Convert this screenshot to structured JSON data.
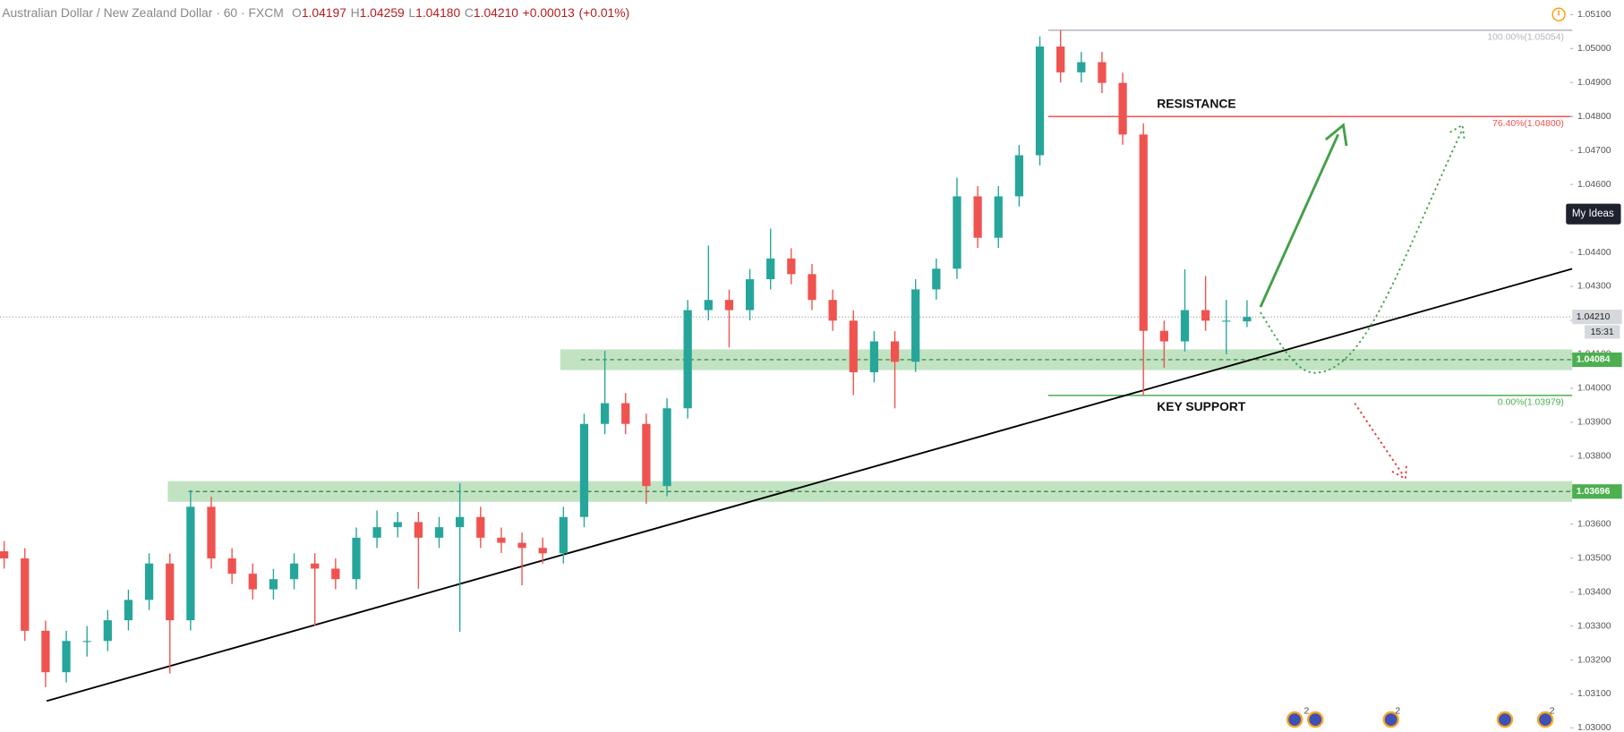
{
  "chart_data": {
    "type": "candlestick",
    "title": "Australian Dollar / New Zealand Dollar · 60 · FXCM",
    "header": {
      "labels": [
        "O",
        "H",
        "L",
        "C"
      ],
      "values": [
        {
          "value": 1.04197,
          "label": "1.04197"
        },
        {
          "value": 1.04259,
          "label": "1.04259"
        },
        {
          "value": 1.0418,
          "label": "1.04180"
        },
        {
          "value": 1.0421,
          "label": "1.04210"
        }
      ],
      "change": {
        "value": 0.00013,
        "label": "+0.00013"
      },
      "change_pct": {
        "value": 0.01,
        "label": "(+0.01%)"
      }
    },
    "open": [
      1.0352,
      1.03499,
      1.03286,
      1.03164,
      1.03256,
      1.03256,
      1.03317,
      1.03377,
      1.03484,
      1.03317,
      1.03651,
      1.03499,
      1.03454,
      1.03408,
      1.03438,
      1.03484,
      1.03469,
      1.03438,
      1.0356,
      1.03591,
      1.03606,
      1.0356,
      1.03591,
      1.03621,
      1.0356,
      1.03545,
      1.0353,
      1.03514,
      1.03621,
      1.03895,
      1.03956,
      1.03895,
      1.03712,
      1.03941,
      1.0423,
      1.0426,
      1.0423,
      1.04321,
      1.04382,
      1.04336,
      1.0426,
      1.04199,
      1.04047,
      1.04138,
      1.04078,
      1.04291,
      1.04352,
      1.04565,
      1.04443,
      1.04565,
      1.04686,
      1.05006,
      1.0493,
      1.0496,
      1.04899,
      1.04747,
      1.04169,
      1.04138,
      1.0423,
      1.04199,
      1.04197
    ],
    "high": [
      1.0355,
      1.03529,
      1.03316,
      1.03286,
      1.033,
      1.03347,
      1.03407,
      1.03514,
      1.03514,
      1.037,
      1.03681,
      1.03529,
      1.03484,
      1.03468,
      1.03514,
      1.03514,
      1.03499,
      1.0359,
      1.0364,
      1.03636,
      1.03636,
      1.03621,
      1.0372,
      1.03651,
      1.0359,
      1.03575,
      1.0356,
      1.03651,
      1.03925,
      1.0411,
      1.03986,
      1.03925,
      1.03971,
      1.0426,
      1.0442,
      1.0429,
      1.04351,
      1.0447,
      1.04412,
      1.04366,
      1.0429,
      1.04229,
      1.04168,
      1.04168,
      1.04321,
      1.04382,
      1.0462,
      1.04595,
      1.04595,
      1.04716,
      1.05036,
      1.05054,
      1.0499,
      1.0499,
      1.04929,
      1.0478,
      1.04199,
      1.0435,
      1.0433,
      1.0426,
      1.04259
    ],
    "low": [
      1.03469,
      1.03256,
      1.0312,
      1.03134,
      1.0321,
      1.03226,
      1.03287,
      1.03347,
      1.0316,
      1.03287,
      1.03469,
      1.03424,
      1.03378,
      1.03378,
      1.03408,
      1.033,
      1.03408,
      1.03408,
      1.0353,
      1.03561,
      1.0341,
      1.0353,
      1.03283,
      1.0353,
      1.03515,
      1.0342,
      1.03484,
      1.03484,
      1.03591,
      1.03865,
      1.03865,
      1.0366,
      1.03682,
      1.03911,
      1.042,
      1.0412,
      1.042,
      1.04291,
      1.04306,
      1.0423,
      1.04169,
      1.0398,
      1.04017,
      1.03941,
      1.04048,
      1.04261,
      1.04322,
      1.04413,
      1.04413,
      1.04535,
      1.04656,
      1.049,
      1.049,
      1.04869,
      1.04717,
      1.03979,
      1.0406,
      1.04108,
      1.04169,
      1.041,
      1.0418
    ],
    "close": [
      1.03499,
      1.03286,
      1.03164,
      1.03256,
      1.03256,
      1.03317,
      1.03377,
      1.03484,
      1.03317,
      1.03651,
      1.03499,
      1.03454,
      1.03408,
      1.03438,
      1.03484,
      1.03469,
      1.03438,
      1.0356,
      1.03591,
      1.03606,
      1.0356,
      1.03591,
      1.03621,
      1.0356,
      1.03545,
      1.0353,
      1.03514,
      1.03621,
      1.03895,
      1.03956,
      1.03895,
      1.03712,
      1.03941,
      1.0423,
      1.0426,
      1.0423,
      1.04321,
      1.04382,
      1.04336,
      1.0426,
      1.04199,
      1.04047,
      1.04138,
      1.04078,
      1.04291,
      1.04352,
      1.04565,
      1.04443,
      1.04565,
      1.04686,
      1.05006,
      1.0493,
      1.0496,
      1.04899,
      1.04747,
      1.04169,
      1.04138,
      1.0423,
      1.04199,
      1.04199,
      1.0421
    ],
    "up_color": "#26a69a",
    "down_color": "#ef5350",
    "ylim": [
      1.02988,
      1.05143
    ],
    "yticks": [
      {
        "value": 1.03,
        "label": "1.03000"
      },
      {
        "value": 1.031,
        "label": "1.03100"
      },
      {
        "value": 1.032,
        "label": "1.03200"
      },
      {
        "value": 1.033,
        "label": "1.03300"
      },
      {
        "value": 1.034,
        "label": "1.03400"
      },
      {
        "value": 1.035,
        "label": "1.03500"
      },
      {
        "value": 1.036,
        "label": "1.03600"
      },
      {
        "value": 1.037,
        "label": "1.03700"
      },
      {
        "value": 1.038,
        "label": "1.03800"
      },
      {
        "value": 1.039,
        "label": "1.03900"
      },
      {
        "value": 1.04,
        "label": "1.04000"
      },
      {
        "value": 1.041,
        "label": "1.04100"
      },
      {
        "value": 1.042,
        "label": "1.04200"
      },
      {
        "value": 1.043,
        "label": "1.04300"
      },
      {
        "value": 1.044,
        "label": "1.04400"
      },
      {
        "value": 1.045,
        "label": "1.04500"
      },
      {
        "value": 1.046,
        "label": "1.04600"
      },
      {
        "value": 1.047,
        "label": "1.04700"
      },
      {
        "value": 1.048,
        "label": "1.04800"
      },
      {
        "value": 1.049,
        "label": "1.04900"
      },
      {
        "value": 1.05,
        "label": "1.05000"
      },
      {
        "value": 1.051,
        "label": "1.05100"
      }
    ],
    "grid": false,
    "last_price": {
      "value": 1.0421,
      "label": "1.04210"
    },
    "countdown": "15:31",
    "zones": [
      {
        "value": 1.04084,
        "color": "#4caf50"
      },
      {
        "value": 1.03696,
        "color": "#4caf50"
      }
    ],
    "fib_levels": [
      {
        "value": 1.05054,
        "label": "100.00%(1.05054)",
        "color": "#b2b5be"
      },
      {
        "value": 1.048,
        "label": "76.40%(1.04800)",
        "color": "#ef5350"
      },
      {
        "value": 1.03979,
        "label": "0.00%(1.03979)",
        "color": "#4caf50"
      }
    ],
    "annotations": [
      "RESISTANCE",
      "KEY SUPPORT"
    ],
    "button": "My Ideas",
    "event_counts": [
      2,
      2,
      2
    ]
  }
}
